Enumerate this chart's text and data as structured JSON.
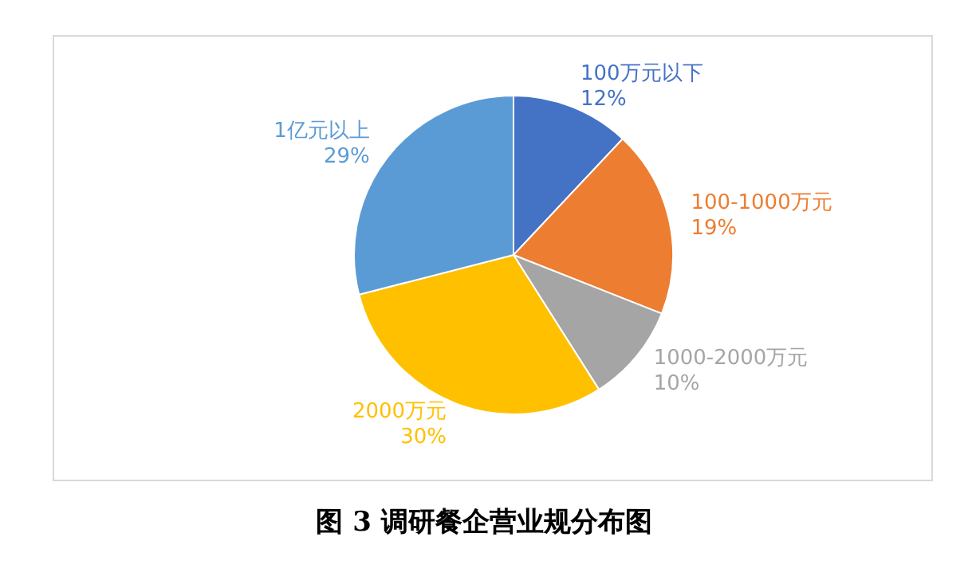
{
  "chart_data": {
    "type": "pie",
    "categories": [
      "100万元以下",
      "100-1000万元",
      "1000-2000万元",
      "2000万元",
      "1亿元以上"
    ],
    "values": [
      12,
      19,
      10,
      30,
      29
    ],
    "value_labels": [
      "12%",
      "19%",
      "10%",
      "30%",
      "29%"
    ],
    "colors": [
      "#4472c4",
      "#ed7d31",
      "#a5a5a5",
      "#ffc000",
      "#5b9bd5"
    ],
    "annotations": [
      "图 3  调研餐企营业规分布图"
    ]
  }
}
